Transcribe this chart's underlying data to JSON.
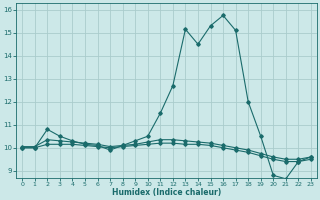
{
  "xlabel": "Humidex (Indice chaleur)",
  "bg_color": "#cce8e8",
  "line_color": "#1a6b6b",
  "grid_color": "#aacccc",
  "x_values": [
    0,
    1,
    2,
    3,
    4,
    5,
    6,
    7,
    8,
    9,
    10,
    11,
    12,
    13,
    14,
    15,
    16,
    17,
    18,
    19,
    20,
    21,
    22,
    23
  ],
  "series": [
    [
      10.0,
      10.0,
      10.8,
      10.5,
      10.3,
      10.15,
      10.1,
      9.9,
      10.1,
      10.3,
      10.5,
      11.5,
      12.7,
      15.15,
      14.5,
      15.3,
      15.75,
      15.1,
      12.0,
      10.5,
      8.8,
      8.65,
      9.4,
      9.6
    ],
    [
      10.05,
      10.05,
      10.35,
      10.3,
      10.25,
      10.2,
      10.15,
      10.05,
      10.1,
      10.15,
      10.25,
      10.35,
      10.35,
      10.3,
      10.25,
      10.2,
      10.1,
      10.0,
      9.9,
      9.75,
      9.6,
      9.5,
      9.5,
      9.6
    ],
    [
      10.0,
      10.0,
      10.15,
      10.15,
      10.15,
      10.1,
      10.05,
      10.0,
      10.05,
      10.1,
      10.15,
      10.2,
      10.2,
      10.15,
      10.15,
      10.1,
      10.0,
      9.9,
      9.8,
      9.65,
      9.5,
      9.4,
      9.4,
      9.5
    ]
  ],
  "ylim": [
    8.7,
    16.3
  ],
  "xlim": [
    -0.5,
    23.5
  ],
  "yticks": [
    9,
    10,
    11,
    12,
    13,
    14,
    15,
    16
  ],
  "xticks": [
    0,
    1,
    2,
    3,
    4,
    5,
    6,
    7,
    8,
    9,
    10,
    11,
    12,
    13,
    14,
    15,
    16,
    17,
    18,
    19,
    20,
    21,
    22,
    23
  ]
}
